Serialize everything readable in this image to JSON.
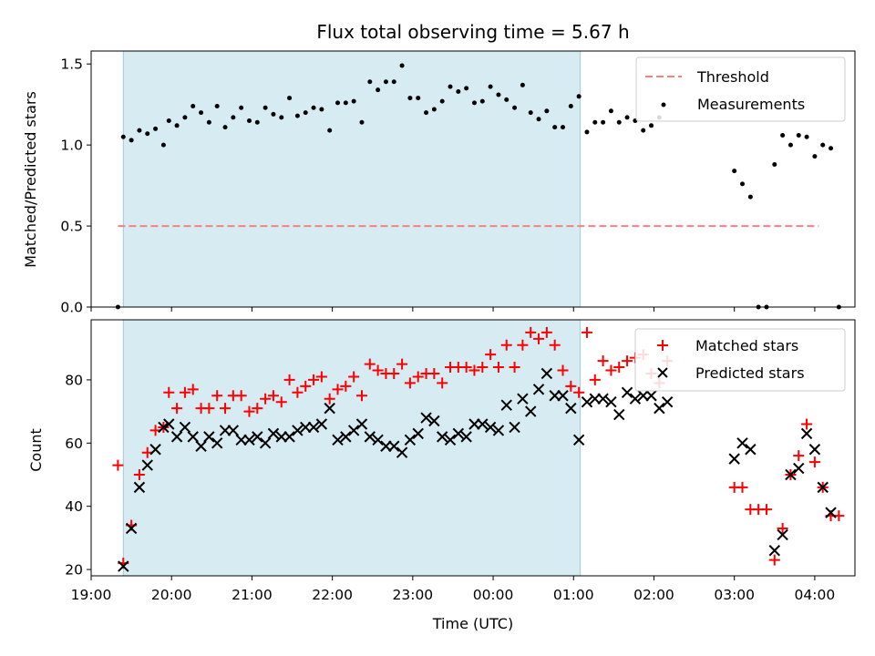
{
  "chart_data": [
    {
      "type": "scatter",
      "title": "Flux total observing time = 5.67 h",
      "ylabel": "Matched/Predicted stars",
      "xlabel": "",
      "xlim": [
        "19:00",
        "04:30"
      ],
      "ylim": [
        0.0,
        1.58
      ],
      "yticks": [
        "0.0",
        "0.5",
        "1.0",
        "1.5"
      ],
      "grid": false,
      "legend_position": "top-right",
      "colors": {
        "threshold": "#ff7f7f",
        "measurements": "#000000",
        "shaded": "#add8e6"
      },
      "shaded_interval": [
        "19:24",
        "01:05"
      ],
      "threshold": {
        "name": "Threshold",
        "value": 0.5,
        "x_start": "19:20",
        "x_end": "04:03"
      },
      "series": [
        {
          "name": "Measurements",
          "points": [
            [
              "19:20",
              0.0
            ],
            [
              "19:24",
              1.05
            ],
            [
              "19:30",
              1.03
            ],
            [
              "19:36",
              1.09
            ],
            [
              "19:42",
              1.07
            ],
            [
              "19:48",
              1.1
            ],
            [
              "19:54",
              1.0
            ],
            [
              "19:58",
              1.15
            ],
            [
              "20:04",
              1.12
            ],
            [
              "20:10",
              1.17
            ],
            [
              "20:16",
              1.24
            ],
            [
              "20:22",
              1.2
            ],
            [
              "20:28",
              1.14
            ],
            [
              "20:34",
              1.24
            ],
            [
              "20:40",
              1.11
            ],
            [
              "20:46",
              1.17
            ],
            [
              "20:52",
              1.23
            ],
            [
              "20:58",
              1.15
            ],
            [
              "21:04",
              1.14
            ],
            [
              "21:10",
              1.23
            ],
            [
              "21:16",
              1.19
            ],
            [
              "21:22",
              1.17
            ],
            [
              "21:28",
              1.29
            ],
            [
              "21:34",
              1.18
            ],
            [
              "21:40",
              1.2
            ],
            [
              "21:46",
              1.23
            ],
            [
              "21:52",
              1.22
            ],
            [
              "21:58",
              1.09
            ],
            [
              "22:04",
              1.26
            ],
            [
              "22:10",
              1.26
            ],
            [
              "22:16",
              1.27
            ],
            [
              "22:22",
              1.14
            ],
            [
              "22:28",
              1.39
            ],
            [
              "22:34",
              1.34
            ],
            [
              "22:40",
              1.39
            ],
            [
              "22:46",
              1.39
            ],
            [
              "22:52",
              1.49
            ],
            [
              "22:58",
              1.29
            ],
            [
              "23:04",
              1.29
            ],
            [
              "23:10",
              1.2
            ],
            [
              "23:16",
              1.22
            ],
            [
              "23:22",
              1.27
            ],
            [
              "23:28",
              1.36
            ],
            [
              "23:34",
              1.33
            ],
            [
              "23:40",
              1.35
            ],
            [
              "23:46",
              1.26
            ],
            [
              "23:52",
              1.27
            ],
            [
              "23:58",
              1.36
            ],
            [
              "00:04",
              1.31
            ],
            [
              "00:10",
              1.28
            ],
            [
              "00:16",
              1.23
            ],
            [
              "00:22",
              1.37
            ],
            [
              "00:28",
              1.2
            ],
            [
              "00:34",
              1.16
            ],
            [
              "00:40",
              1.21
            ],
            [
              "00:46",
              1.11
            ],
            [
              "00:52",
              1.11
            ],
            [
              "00:58",
              1.24
            ],
            [
              "01:04",
              1.3
            ],
            [
              "01:10",
              1.08
            ],
            [
              "01:16",
              1.14
            ],
            [
              "01:22",
              1.14
            ],
            [
              "01:28",
              1.21
            ],
            [
              "01:34",
              1.14
            ],
            [
              "01:40",
              1.17
            ],
            [
              "01:46",
              1.15
            ],
            [
              "01:52",
              1.09
            ],
            [
              "01:58",
              1.12
            ],
            [
              "02:04",
              1.17
            ],
            [
              "03:00",
              0.84
            ],
            [
              "03:06",
              0.76
            ],
            [
              "03:12",
              0.68
            ],
            [
              "03:18",
              0.0
            ],
            [
              "03:24",
              0.0
            ],
            [
              "03:30",
              0.88
            ],
            [
              "03:36",
              1.06
            ],
            [
              "03:42",
              1.0
            ],
            [
              "03:48",
              1.06
            ],
            [
              "03:54",
              1.05
            ],
            [
              "04:00",
              0.93
            ],
            [
              "04:06",
              1.0
            ],
            [
              "04:12",
              0.98
            ],
            [
              "04:18",
              0.0
            ]
          ]
        }
      ]
    },
    {
      "type": "scatter",
      "title": "",
      "xlabel": "Time (UTC)",
      "ylabel": "Count",
      "xlim": [
        "19:00",
        "04:30"
      ],
      "ylim": [
        18,
        99
      ],
      "xticks": [
        "19:00",
        "20:00",
        "21:00",
        "22:00",
        "23:00",
        "00:00",
        "01:00",
        "02:00",
        "03:00",
        "04:00"
      ],
      "yticks": [
        "20",
        "40",
        "60",
        "80"
      ],
      "grid": false,
      "legend_position": "top-right",
      "colors": {
        "matched": "#ff0000",
        "predicted": "#000000",
        "shaded": "#add8e6"
      },
      "shaded_interval": [
        "19:24",
        "01:05"
      ],
      "series": [
        {
          "name": "Matched stars",
          "marker": "plus",
          "points": [
            [
              "19:20",
              53
            ],
            [
              "19:24",
              22
            ],
            [
              "19:30",
              34
            ],
            [
              "19:36",
              50
            ],
            [
              "19:42",
              57
            ],
            [
              "19:48",
              64
            ],
            [
              "19:54",
              65
            ],
            [
              "19:58",
              76
            ],
            [
              "20:04",
              71
            ],
            [
              "20:10",
              76
            ],
            [
              "20:16",
              77
            ],
            [
              "20:22",
              71
            ],
            [
              "20:28",
              71
            ],
            [
              "20:34",
              75
            ],
            [
              "20:40",
              71
            ],
            [
              "20:46",
              75
            ],
            [
              "20:52",
              75
            ],
            [
              "20:58",
              70
            ],
            [
              "21:04",
              71
            ],
            [
              "21:10",
              74
            ],
            [
              "21:16",
              75
            ],
            [
              "21:22",
              73
            ],
            [
              "21:28",
              80
            ],
            [
              "21:34",
              76
            ],
            [
              "21:40",
              78
            ],
            [
              "21:46",
              80
            ],
            [
              "21:52",
              81
            ],
            [
              "21:58",
              74
            ],
            [
              "22:04",
              77
            ],
            [
              "22:10",
              78
            ],
            [
              "22:16",
              81
            ],
            [
              "22:22",
              75
            ],
            [
              "22:28",
              85
            ],
            [
              "22:34",
              83
            ],
            [
              "22:40",
              82
            ],
            [
              "22:46",
              82
            ],
            [
              "22:52",
              85
            ],
            [
              "22:58",
              79
            ],
            [
              "23:04",
              81
            ],
            [
              "23:10",
              82
            ],
            [
              "23:16",
              82
            ],
            [
              "23:22",
              79
            ],
            [
              "23:28",
              84
            ],
            [
              "23:34",
              84
            ],
            [
              "23:40",
              84
            ],
            [
              "23:46",
              83
            ],
            [
              "23:52",
              84
            ],
            [
              "23:58",
              88
            ],
            [
              "00:04",
              84
            ],
            [
              "00:10",
              91
            ],
            [
              "00:16",
              84
            ],
            [
              "00:22",
              91
            ],
            [
              "00:28",
              95
            ],
            [
              "00:34",
              93
            ],
            [
              "00:40",
              95
            ],
            [
              "00:46",
              91
            ],
            [
              "00:52",
              83
            ],
            [
              "00:58",
              78
            ],
            [
              "01:04",
              76
            ],
            [
              "01:10",
              95
            ],
            [
              "01:16",
              80
            ],
            [
              "01:22",
              86
            ],
            [
              "01:28",
              83
            ],
            [
              "01:34",
              84
            ],
            [
              "01:40",
              86
            ],
            [
              "01:46",
              87
            ],
            [
              "01:52",
              88
            ],
            [
              "01:58",
              82
            ],
            [
              "02:04",
              79
            ],
            [
              "02:10",
              86
            ],
            [
              "03:00",
              46
            ],
            [
              "03:06",
              46
            ],
            [
              "03:12",
              39
            ],
            [
              "03:18",
              39
            ],
            [
              "03:24",
              39
            ],
            [
              "03:30",
              23
            ],
            [
              "03:36",
              33
            ],
            [
              "03:42",
              50
            ],
            [
              "03:48",
              56
            ],
            [
              "03:54",
              66
            ],
            [
              "04:00",
              54
            ],
            [
              "04:06",
              46
            ],
            [
              "04:12",
              37
            ],
            [
              "04:18",
              37
            ]
          ]
        },
        {
          "name": "Predicted stars",
          "marker": "x",
          "points": [
            [
              "19:24",
              21
            ],
            [
              "19:30",
              33
            ],
            [
              "19:36",
              46
            ],
            [
              "19:42",
              53
            ],
            [
              "19:48",
              58
            ],
            [
              "19:54",
              65
            ],
            [
              "19:58",
              66
            ],
            [
              "20:04",
              62
            ],
            [
              "20:10",
              65
            ],
            [
              "20:16",
              62
            ],
            [
              "20:22",
              59
            ],
            [
              "20:28",
              62
            ],
            [
              "20:34",
              60
            ],
            [
              "20:40",
              64
            ],
            [
              "20:46",
              64
            ],
            [
              "20:52",
              61
            ],
            [
              "20:58",
              61
            ],
            [
              "21:04",
              62
            ],
            [
              "21:10",
              60
            ],
            [
              "21:16",
              63
            ],
            [
              "21:22",
              62
            ],
            [
              "21:28",
              62
            ],
            [
              "21:34",
              64
            ],
            [
              "21:40",
              65
            ],
            [
              "21:46",
              65
            ],
            [
              "21:52",
              66
            ],
            [
              "21:58",
              71
            ],
            [
              "22:04",
              61
            ],
            [
              "22:10",
              62
            ],
            [
              "22:16",
              64
            ],
            [
              "22:22",
              66
            ],
            [
              "22:28",
              62
            ],
            [
              "22:34",
              61
            ],
            [
              "22:40",
              59
            ],
            [
              "22:46",
              59
            ],
            [
              "22:52",
              57
            ],
            [
              "22:58",
              61
            ],
            [
              "23:04",
              63
            ],
            [
              "23:10",
              68
            ],
            [
              "23:16",
              67
            ],
            [
              "23:22",
              62
            ],
            [
              "23:28",
              61
            ],
            [
              "23:34",
              63
            ],
            [
              "23:40",
              62
            ],
            [
              "23:46",
              66
            ],
            [
              "23:52",
              66
            ],
            [
              "23:58",
              65
            ],
            [
              "00:04",
              64
            ],
            [
              "00:10",
              72
            ],
            [
              "00:16",
              65
            ],
            [
              "00:22",
              74
            ],
            [
              "00:28",
              70
            ],
            [
              "00:34",
              77
            ],
            [
              "00:40",
              82
            ],
            [
              "00:46",
              75
            ],
            [
              "00:52",
              75
            ],
            [
              "00:58",
              71
            ],
            [
              "01:04",
              61
            ],
            [
              "01:10",
              73
            ],
            [
              "01:16",
              74
            ],
            [
              "01:22",
              74
            ],
            [
              "01:28",
              73
            ],
            [
              "01:34",
              69
            ],
            [
              "01:40",
              76
            ],
            [
              "01:46",
              74
            ],
            [
              "01:52",
              75
            ],
            [
              "01:58",
              75
            ],
            [
              "02:04",
              71
            ],
            [
              "02:10",
              73
            ],
            [
              "03:00",
              55
            ],
            [
              "03:06",
              60
            ],
            [
              "03:12",
              58
            ],
            [
              "03:30",
              26
            ],
            [
              "03:36",
              31
            ],
            [
              "03:42",
              50
            ],
            [
              "03:48",
              52
            ],
            [
              "03:54",
              63
            ],
            [
              "04:00",
              58
            ],
            [
              "04:06",
              46
            ],
            [
              "04:12",
              38
            ]
          ]
        }
      ]
    }
  ]
}
